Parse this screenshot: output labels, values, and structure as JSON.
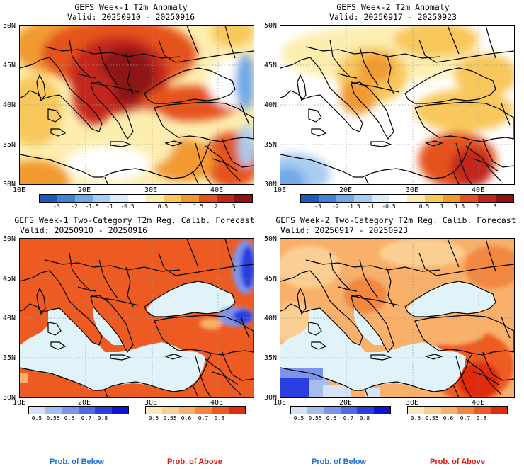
{
  "panels": [
    {
      "title": "GEFS Week-1 T2m Anomaly",
      "valid": "Valid: 20250910 - 20250916"
    },
    {
      "title": "GEFS Week-2 T2m Anomaly",
      "valid": "Valid: 20250917 - 20250923"
    },
    {
      "title": "GEFS Week-1 Two-Category T2m Reg. Calib. Forecast",
      "valid": "Valid: 20250910 - 20250916"
    },
    {
      "title": "GEFS Week-2 Two-Category T2m Reg. Calib. Forecast",
      "valid": "Valid: 20250917 - 20250923"
    }
  ],
  "axes": {
    "lat_labels": [
      "50N",
      "45N",
      "40N",
      "35N",
      "30N"
    ],
    "lon_labels": [
      "10E",
      "20E",
      "30E",
      "40E"
    ]
  },
  "anomaly_colorbar": {
    "labels": [
      "-3",
      "-2",
      "-1.5",
      "-1",
      "-0.5",
      "0.5",
      "1",
      "1.5",
      "2",
      "3"
    ],
    "colors": [
      "#1d5cb8",
      "#3c84d8",
      "#6ea9e8",
      "#a7cdf0",
      "#dcecf8",
      "#ffffff",
      "#fdeeb0",
      "#f8c85c",
      "#f29a30",
      "#e5531c",
      "#c3261b",
      "#8c1414"
    ]
  },
  "prob_below_colorbar": {
    "labels": [
      "0.5",
      "0.55",
      "0.6",
      "0.7",
      "0.8"
    ],
    "colors": [
      "#d6e2f5",
      "#a7bdf0",
      "#7c95ec",
      "#4f6ae6",
      "#2a3edf",
      "#0a14d2"
    ]
  },
  "prob_above_colorbar": {
    "labels": [
      "0.5",
      "0.55",
      "0.6",
      "0.7",
      "0.8"
    ],
    "colors": [
      "#fde8c0",
      "#fbcf93",
      "#f8b06a",
      "#f3873f",
      "#ee5b22",
      "#e02a10"
    ]
  },
  "footer": {
    "below": "Prob. of Below",
    "above": "Prob. of Above",
    "below_color": "#1e6fdc",
    "above_color": "#e0140e"
  }
}
